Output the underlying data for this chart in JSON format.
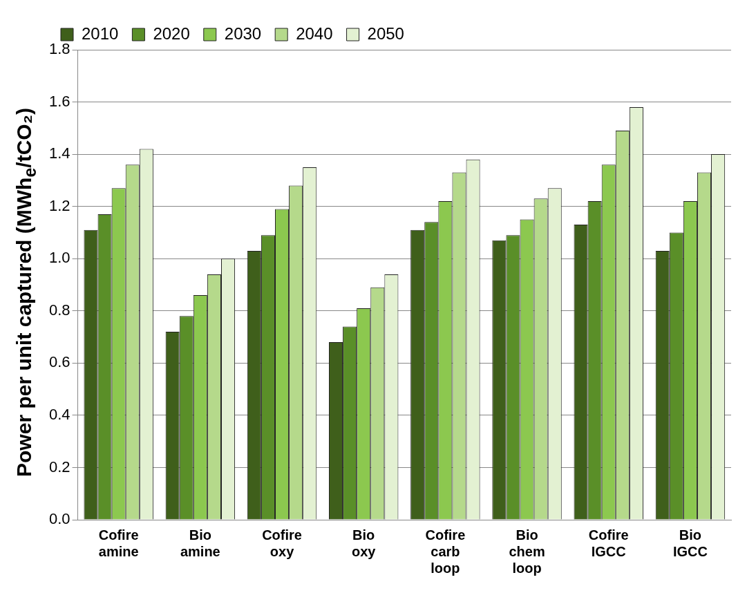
{
  "chart_data": {
    "type": "bar",
    "ylabel": "Power per unit captured (MWh$_{e}$/tCO₂)",
    "categories": [
      "Cofire amine",
      "Bio amine",
      "Cofire oxy",
      "Bio oxy",
      "Cofire carb loop",
      "Bio chem loop",
      "Cofire IGCC",
      "Bio IGCC"
    ],
    "series": [
      {
        "name": "2010",
        "color": "#3f5f1b",
        "values": [
          1.11,
          0.72,
          1.03,
          0.68,
          1.11,
          1.07,
          1.13,
          1.03
        ]
      },
      {
        "name": "2020",
        "color": "#5a8f28",
        "values": [
          1.17,
          0.78,
          1.09,
          0.74,
          1.14,
          1.09,
          1.22,
          1.1
        ]
      },
      {
        "name": "2030",
        "color": "#8cc84f",
        "values": [
          1.27,
          0.86,
          1.19,
          0.81,
          1.22,
          1.15,
          1.36,
          1.22
        ]
      },
      {
        "name": "2040",
        "color": "#b5d98b",
        "values": [
          1.36,
          0.94,
          1.28,
          0.89,
          1.33,
          1.23,
          1.49,
          1.33
        ]
      },
      {
        "name": "2050",
        "color": "#e3f1d2",
        "values": [
          1.42,
          1.0,
          1.35,
          0.94,
          1.38,
          1.27,
          1.58,
          1.4
        ]
      }
    ],
    "ylim": [
      0,
      1.8
    ],
    "yticks": [
      {
        "value": 0,
        "label": "0.0"
      },
      0.2,
      0.4,
      0.6,
      0.8,
      {
        "value": 1,
        "label": "1.0"
      },
      1.2,
      1.4,
      1.6,
      1.8
    ],
    "grid": "y",
    "legend": "top"
  }
}
